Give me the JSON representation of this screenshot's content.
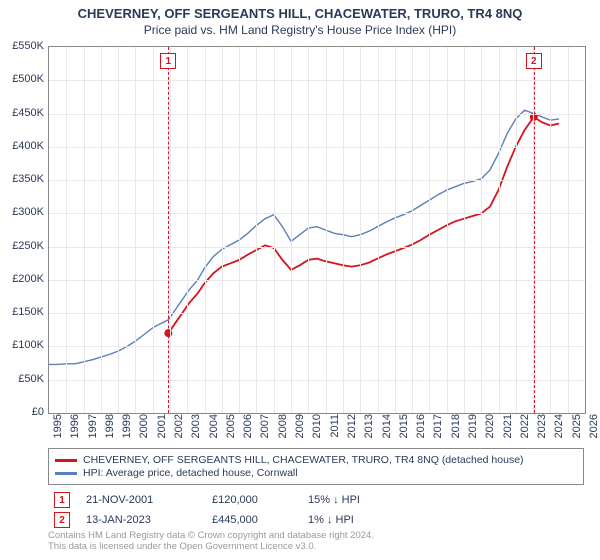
{
  "title": "CHEVERNEY, OFF SERGEANTS HILL, CHACEWATER, TRURO, TR4 8NQ",
  "subtitle": "Price paid vs. HM Land Registry's House Price Index (HPI)",
  "chart": {
    "type": "line",
    "background_color": "#ffffff",
    "grid_color": "#e8e8e8",
    "border_color": "#888888",
    "title_fontsize": 13,
    "subtitle_fontsize": 12,
    "axis_label_fontsize": 11,
    "axis_label_color": "#2a3a5a",
    "x": {
      "min": 1995,
      "max": 2026,
      "ticks": [
        1995,
        1996,
        1997,
        1998,
        1999,
        2000,
        2001,
        2002,
        2003,
        2004,
        2005,
        2006,
        2007,
        2008,
        2009,
        2010,
        2011,
        2012,
        2013,
        2014,
        2015,
        2016,
        2017,
        2018,
        2019,
        2020,
        2021,
        2022,
        2023,
        2024,
        2025,
        2026
      ],
      "label_rotation": -90
    },
    "y": {
      "min": 0,
      "max": 550000,
      "ticks": [
        0,
        50000,
        100000,
        150000,
        200000,
        250000,
        300000,
        350000,
        400000,
        450000,
        500000,
        550000
      ],
      "tick_labels": [
        "£0",
        "£50K",
        "£100K",
        "£150K",
        "£200K",
        "£250K",
        "£300K",
        "£350K",
        "£400K",
        "£450K",
        "£500K",
        "£550K"
      ]
    },
    "series": [
      {
        "name": "property",
        "label": "CHEVERNEY, OFF SERGEANTS HILL, CHACEWATER, TRURO, TR4 8NQ (detached house)",
        "color": "#d4141e",
        "line_width": 1.8,
        "data": [
          [
            2001.9,
            120000
          ],
          [
            2002.3,
            135000
          ],
          [
            2002.7,
            150000
          ],
          [
            2003.1,
            165000
          ],
          [
            2003.6,
            180000
          ],
          [
            2004.0,
            195000
          ],
          [
            2004.5,
            210000
          ],
          [
            2005.0,
            220000
          ],
          [
            2005.5,
            225000
          ],
          [
            2006.0,
            230000
          ],
          [
            2006.5,
            238000
          ],
          [
            2007.0,
            245000
          ],
          [
            2007.5,
            252000
          ],
          [
            2008.0,
            248000
          ],
          [
            2008.5,
            230000
          ],
          [
            2009.0,
            215000
          ],
          [
            2009.5,
            222000
          ],
          [
            2010.0,
            230000
          ],
          [
            2010.5,
            232000
          ],
          [
            2011.0,
            228000
          ],
          [
            2011.5,
            225000
          ],
          [
            2012.0,
            222000
          ],
          [
            2012.5,
            220000
          ],
          [
            2013.0,
            222000
          ],
          [
            2013.5,
            226000
          ],
          [
            2014.0,
            232000
          ],
          [
            2014.5,
            238000
          ],
          [
            2015.0,
            243000
          ],
          [
            2015.5,
            248000
          ],
          [
            2016.0,
            253000
          ],
          [
            2016.5,
            260000
          ],
          [
            2017.0,
            268000
          ],
          [
            2017.5,
            275000
          ],
          [
            2018.0,
            282000
          ],
          [
            2018.5,
            288000
          ],
          [
            2019.0,
            292000
          ],
          [
            2019.5,
            296000
          ],
          [
            2020.0,
            300000
          ],
          [
            2020.5,
            310000
          ],
          [
            2021.0,
            335000
          ],
          [
            2021.5,
            370000
          ],
          [
            2022.0,
            400000
          ],
          [
            2022.5,
            425000
          ],
          [
            2023.04,
            445000
          ],
          [
            2023.5,
            437000
          ],
          [
            2024.0,
            432000
          ],
          [
            2024.5,
            435000
          ]
        ]
      },
      {
        "name": "hpi",
        "label": "HPI: Average price, detached house, Cornwall",
        "color": "#5a7fb8",
        "line_width": 1.4,
        "data": [
          [
            1995.0,
            73000
          ],
          [
            1995.5,
            73000
          ],
          [
            1996.0,
            74000
          ],
          [
            1996.5,
            74000
          ],
          [
            1997.0,
            77000
          ],
          [
            1997.5,
            80000
          ],
          [
            1998.0,
            84000
          ],
          [
            1998.5,
            88000
          ],
          [
            1999.0,
            93000
          ],
          [
            1999.5,
            100000
          ],
          [
            2000.0,
            108000
          ],
          [
            2000.5,
            118000
          ],
          [
            2001.0,
            128000
          ],
          [
            2001.5,
            135000
          ],
          [
            2001.9,
            140000
          ],
          [
            2002.3,
            155000
          ],
          [
            2002.7,
            170000
          ],
          [
            2003.1,
            185000
          ],
          [
            2003.6,
            200000
          ],
          [
            2004.0,
            218000
          ],
          [
            2004.5,
            235000
          ],
          [
            2005.0,
            246000
          ],
          [
            2005.5,
            253000
          ],
          [
            2006.0,
            260000
          ],
          [
            2006.5,
            270000
          ],
          [
            2007.0,
            282000
          ],
          [
            2007.5,
            292000
          ],
          [
            2008.0,
            298000
          ],
          [
            2008.5,
            280000
          ],
          [
            2009.0,
            258000
          ],
          [
            2009.5,
            268000
          ],
          [
            2010.0,
            278000
          ],
          [
            2010.5,
            280000
          ],
          [
            2011.0,
            275000
          ],
          [
            2011.5,
            270000
          ],
          [
            2012.0,
            268000
          ],
          [
            2012.5,
            265000
          ],
          [
            2013.0,
            268000
          ],
          [
            2013.5,
            273000
          ],
          [
            2014.0,
            280000
          ],
          [
            2014.5,
            287000
          ],
          [
            2015.0,
            293000
          ],
          [
            2015.5,
            298000
          ],
          [
            2016.0,
            304000
          ],
          [
            2016.5,
            312000
          ],
          [
            2017.0,
            320000
          ],
          [
            2017.5,
            328000
          ],
          [
            2018.0,
            335000
          ],
          [
            2018.5,
            340000
          ],
          [
            2019.0,
            345000
          ],
          [
            2019.5,
            348000
          ],
          [
            2020.0,
            352000
          ],
          [
            2020.5,
            365000
          ],
          [
            2021.0,
            390000
          ],
          [
            2021.5,
            420000
          ],
          [
            2022.0,
            442000
          ],
          [
            2022.5,
            455000
          ],
          [
            2023.04,
            450000
          ],
          [
            2023.5,
            445000
          ],
          [
            2024.0,
            440000
          ],
          [
            2024.5,
            442000
          ]
        ]
      }
    ],
    "markers": [
      {
        "id": "1",
        "x": 2001.9,
        "y": 120000,
        "color": "#d4141e",
        "date": "21-NOV-2001",
        "price": "£120,000",
        "diff": "15% ↓ HPI"
      },
      {
        "id": "2",
        "x": 2023.04,
        "y": 445000,
        "color": "#d4141e",
        "date": "13-JAN-2023",
        "price": "£445,000",
        "diff": "1% ↓ HPI"
      }
    ]
  },
  "legend": {
    "border_color": "#888888",
    "fontsize": 10.5
  },
  "footer": {
    "line1": "Contains HM Land Registry data © Crown copyright and database right 2024.",
    "line2": "This data is licensed under the Open Government Licence v3.0.",
    "color": "#9a9a9a",
    "fontsize": 9.5
  }
}
